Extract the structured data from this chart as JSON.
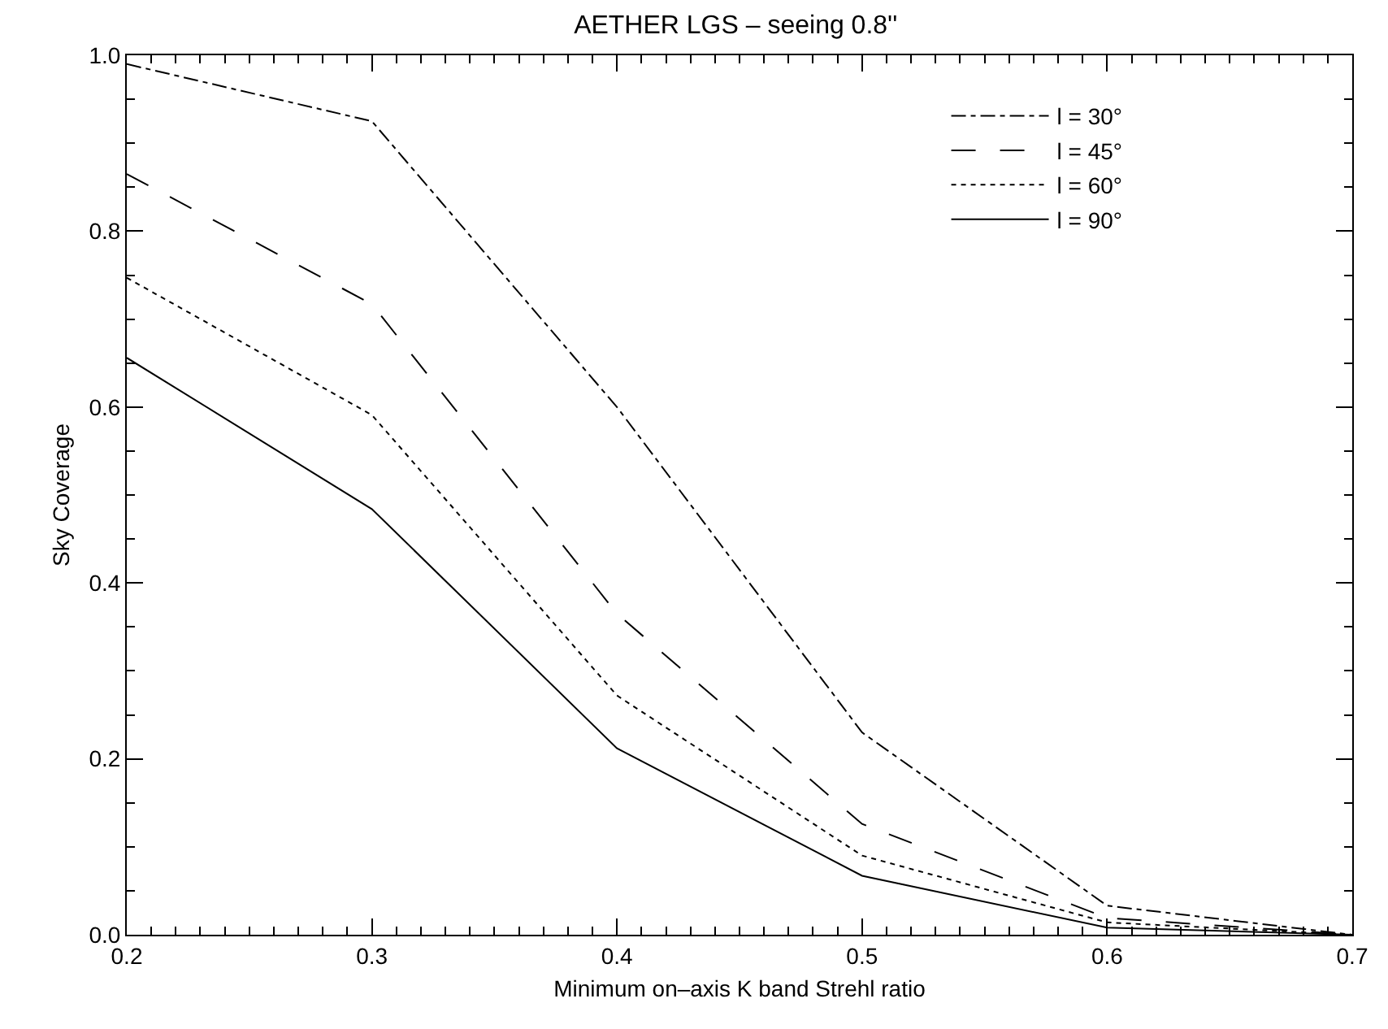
{
  "chart_data": {
    "type": "line",
    "title": "AETHER LGS – seeing 0.8''",
    "xlabel": "Minimum on–axis K band Strehl ratio",
    "ylabel": "Sky Coverage",
    "x": [
      0.2,
      0.3,
      0.4,
      0.5,
      0.6,
      0.7
    ],
    "series": [
      {
        "name": "l = 30°",
        "color": "#000000",
        "line_style": "dashdot",
        "values": [
          0.99,
          0.925,
          0.6,
          0.23,
          0.033,
          0.0
        ]
      },
      {
        "name": "l = 45°",
        "color": "#000000",
        "line_style": "dashed",
        "values": [
          0.865,
          0.717,
          0.365,
          0.126,
          0.019,
          0.0
        ]
      },
      {
        "name": "l = 60°",
        "color": "#000000",
        "line_style": "dotted",
        "values": [
          0.747,
          0.591,
          0.272,
          0.09,
          0.014,
          0.0
        ]
      },
      {
        "name": "l = 90°",
        "color": "#000000",
        "line_style": "solid",
        "values": [
          0.656,
          0.484,
          0.212,
          0.067,
          0.008,
          0.0
        ]
      }
    ],
    "xlim": [
      0.2,
      0.7
    ],
    "xticks": [
      0.2,
      0.3,
      0.4,
      0.5,
      0.6,
      0.7
    ],
    "ylim": [
      0,
      1
    ],
    "yticks": [
      {
        "value": 0,
        "label": "0.0"
      },
      {
        "value": 0.2,
        "label": "0.2"
      },
      {
        "value": 0.4,
        "label": "0.4"
      },
      {
        "value": 0.6,
        "label": "0.6"
      },
      {
        "value": 0.8,
        "label": "0.8"
      },
      {
        "value": 1,
        "label": "1.0"
      }
    ],
    "grid": false,
    "legend": "top right",
    "marker": "none"
  }
}
